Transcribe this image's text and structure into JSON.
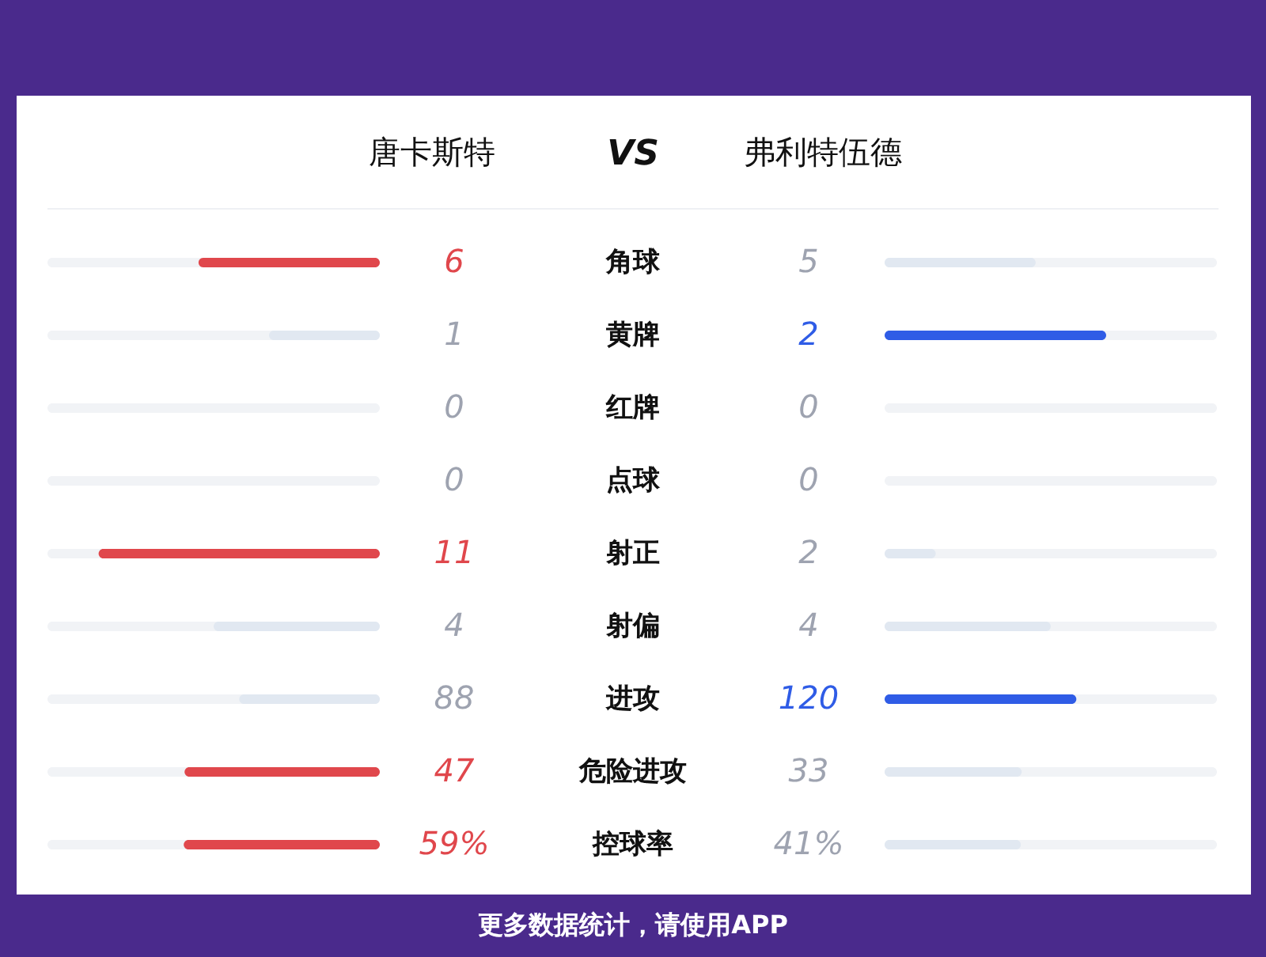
{
  "chart_data": {
    "type": "other",
    "categories": [
      "角球",
      "黄牌",
      "红牌",
      "点球",
      "射正",
      "射偏",
      "进攻",
      "危险进攻",
      "控球率"
    ],
    "series": [
      {
        "name": "唐卡斯特",
        "values": [
          6,
          1,
          0,
          0,
          11,
          4,
          88,
          47,
          59
        ],
        "colors": [
          "#e0474c",
          "#e1e8f1",
          null,
          null,
          "#e0474c",
          "#e1e8f1",
          "#e1e8f1",
          "#e0474c",
          "#e0474c"
        ],
        "value_labels": [
          "6",
          "1",
          "0",
          "0",
          "11",
          "4",
          "88",
          "47",
          "59%"
        ]
      },
      {
        "name": "弗利特伍德",
        "values": [
          5,
          2,
          0,
          0,
          2,
          4,
          120,
          33,
          41
        ],
        "colors": [
          "#e1e8f1",
          "#2f5ce6",
          null,
          null,
          "#e1e8f1",
          "#e1e8f1",
          "#2f5ce6",
          "#e1e8f1",
          "#e1e8f1"
        ],
        "value_labels": [
          "5",
          "2",
          "0",
          "0",
          "2",
          "4",
          "120",
          "33",
          "41%"
        ]
      }
    ],
    "annotations": [
      "VS",
      "更多数据统计，请使用APP"
    ]
  }
}
